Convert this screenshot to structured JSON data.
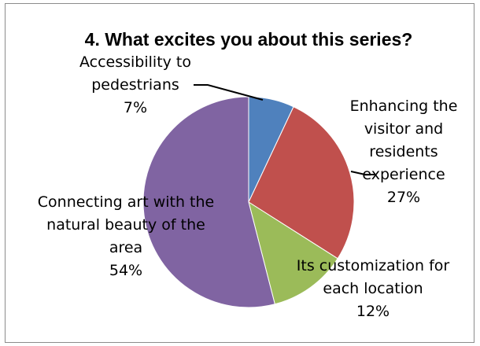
{
  "chart_data": {
    "type": "pie",
    "title": "4. What excites you about this series?",
    "slices": [
      {
        "label": [
          "Accessibility to",
          "pedestrians"
        ],
        "percent_label": "7%",
        "value": 7,
        "color": "#4F81BD"
      },
      {
        "label": [
          "Enhancing the",
          "visitor and",
          "residents",
          "experience"
        ],
        "percent_label": "27%",
        "value": 27,
        "color": "#C0504D"
      },
      {
        "label": [
          "Its customization for",
          "each location"
        ],
        "percent_label": "12%",
        "value": 12,
        "color": "#9BBB59"
      },
      {
        "label": [
          "Connecting art with the",
          "natural beauty of the",
          "area"
        ],
        "percent_label": "54%",
        "value": 54,
        "color": "#8064A2"
      }
    ],
    "start_angle_deg": 0,
    "direction": "clockwise",
    "legend": "none"
  }
}
